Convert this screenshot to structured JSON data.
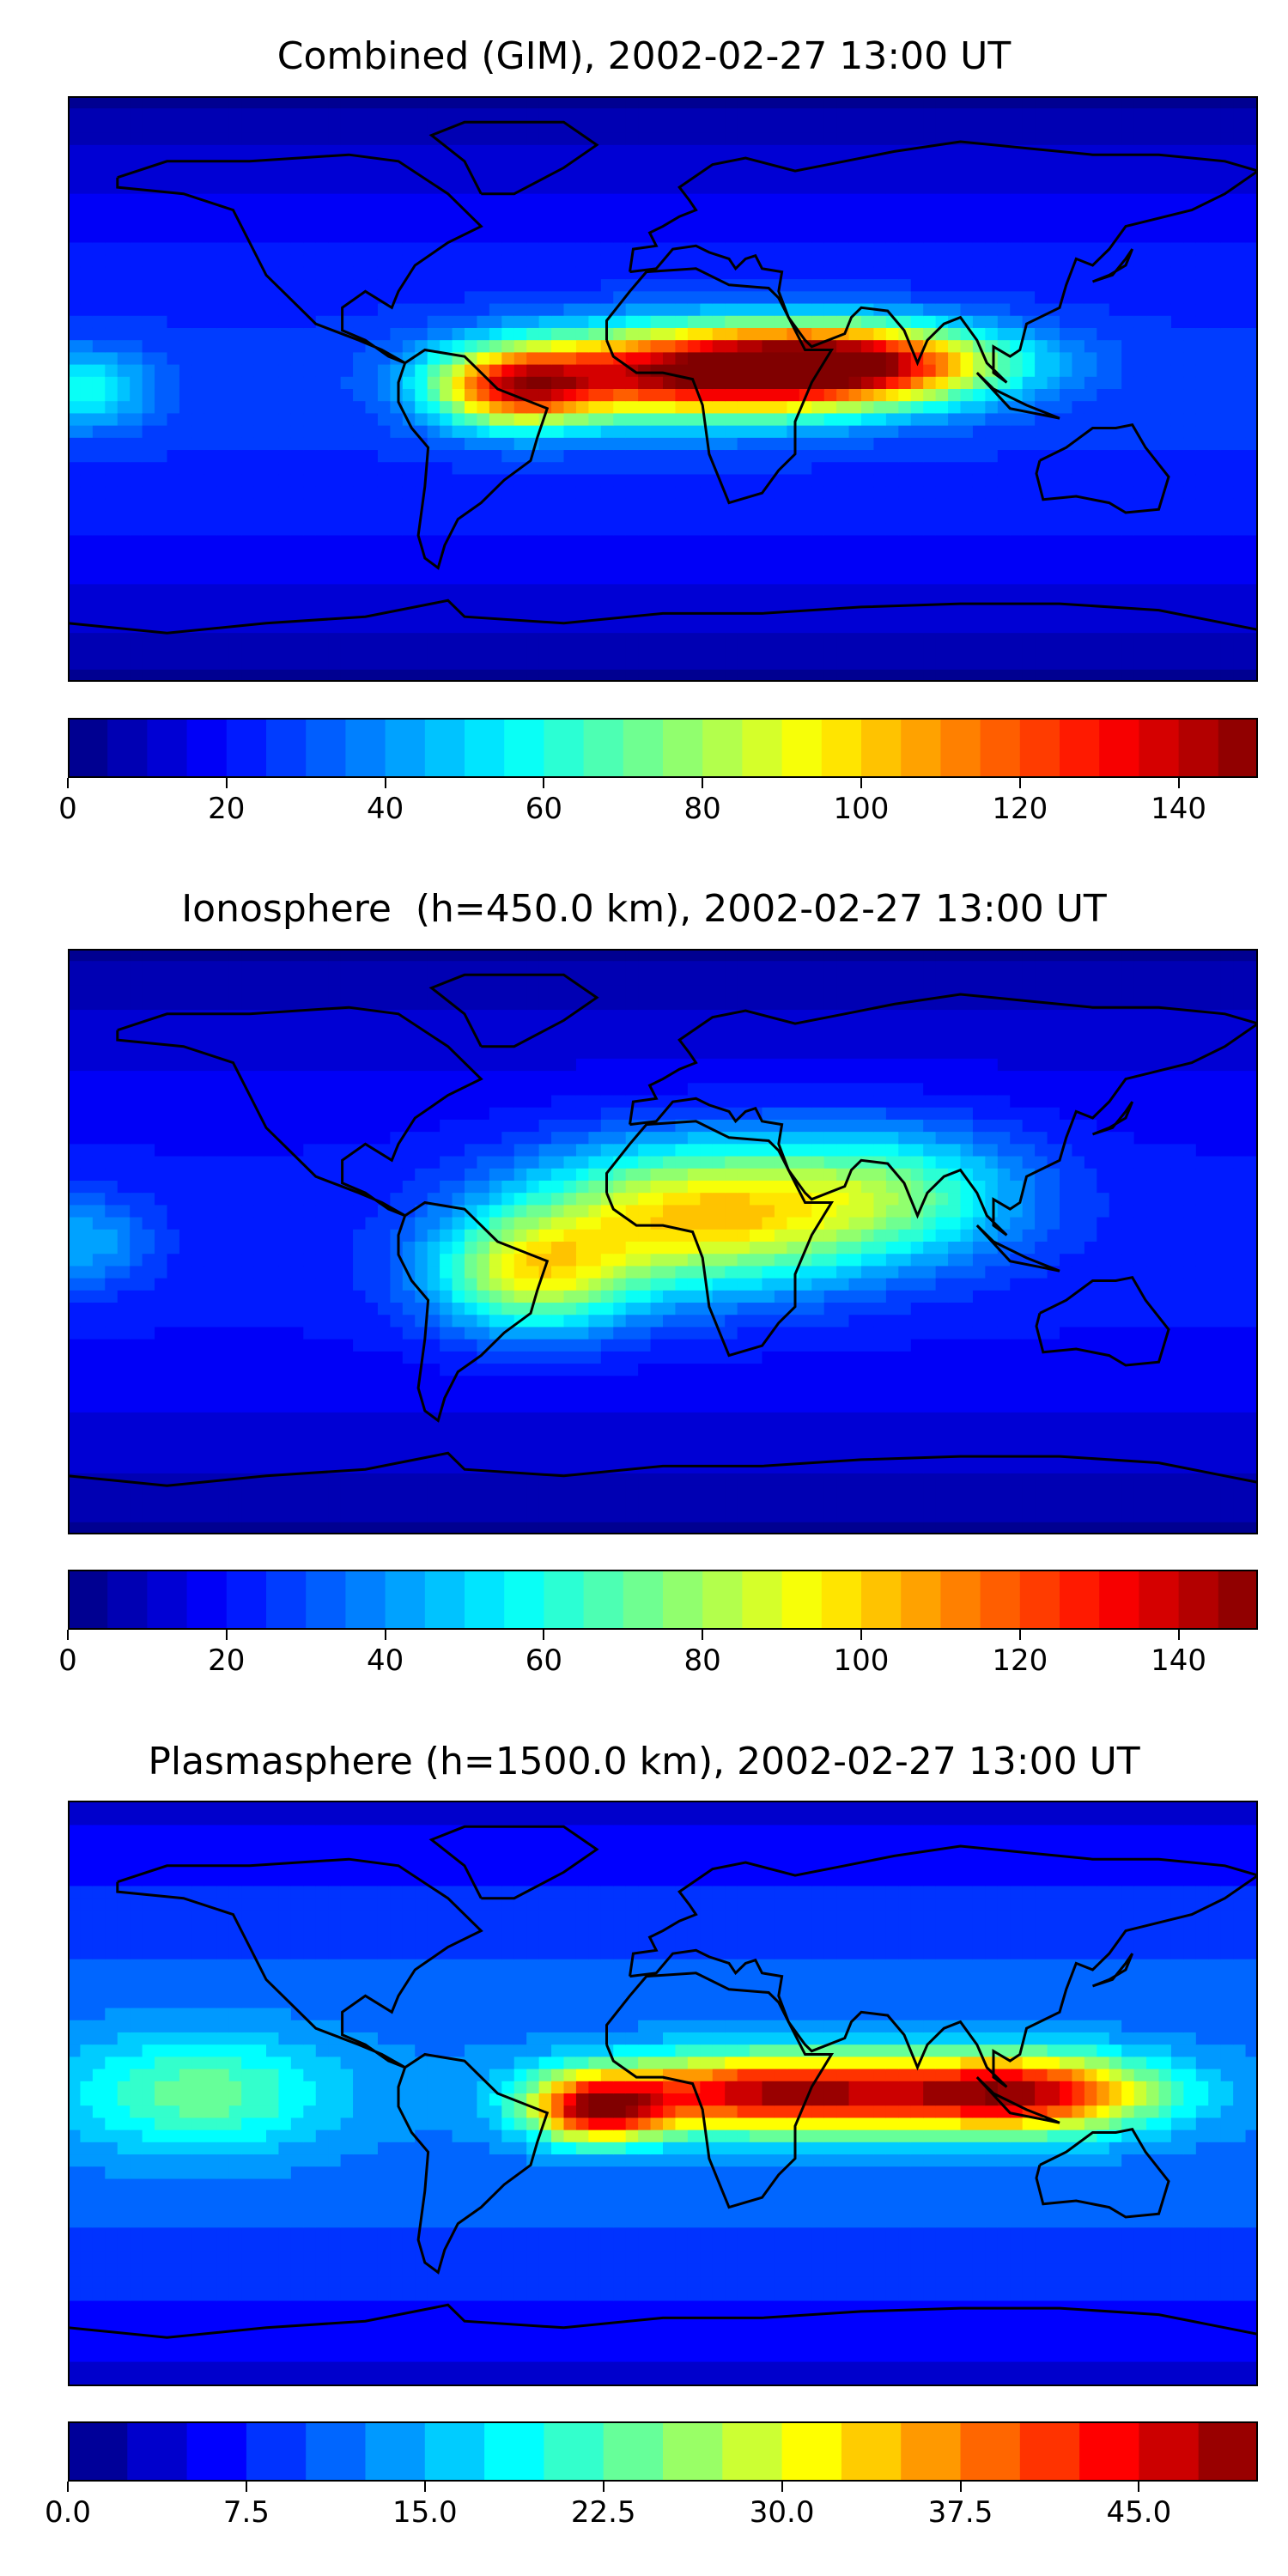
{
  "chart_data": [
    {
      "type": "heatmap",
      "title": "Combined (GIM), 2002-02-27 13:00 UT",
      "colorbar": {
        "min": 0,
        "max": 150,
        "levels": 30,
        "ticks": [
          0,
          20,
          40,
          60,
          80,
          100,
          120,
          140
        ],
        "tick_labels": [
          "0",
          "20",
          "40",
          "60",
          "80",
          "100",
          "120",
          "140"
        ]
      },
      "blobs": [
        {
          "lon": 10,
          "lat": 5,
          "value": 135,
          "radius_lon": 55,
          "radius_lat": 14
        },
        {
          "lon": 60,
          "lat": 8,
          "value": 115,
          "radius_lon": 45,
          "radius_lat": 12
        },
        {
          "lon": -45,
          "lat": 0,
          "value": 105,
          "radius_lon": 25,
          "radius_lat": 12
        },
        {
          "lon": -175,
          "lat": 0,
          "value": 55,
          "radius_lon": 20,
          "radius_lat": 12
        }
      ],
      "background": 22
    },
    {
      "type": "heatmap",
      "title": "Ionosphere  (h=450.0 km), 2002-02-27 13:00 UT",
      "colorbar": {
        "min": 0,
        "max": 150,
        "levels": 30,
        "ticks": [
          0,
          20,
          40,
          60,
          80,
          100,
          120,
          140
        ],
        "tick_labels": [
          "0",
          "20",
          "40",
          "60",
          "80",
          "100",
          "120",
          "140"
        ]
      },
      "blobs": [
        {
          "lon": 10,
          "lat": 8,
          "value": 95,
          "radius_lon": 50,
          "radius_lat": 22
        },
        {
          "lon": -40,
          "lat": -10,
          "value": 80,
          "radius_lon": 30,
          "radius_lat": 18
        },
        {
          "lon": 70,
          "lat": 15,
          "value": 60,
          "radius_lon": 40,
          "radius_lat": 20
        },
        {
          "lon": -175,
          "lat": 0,
          "value": 40,
          "radius_lon": 20,
          "radius_lat": 14
        }
      ],
      "background": 18
    },
    {
      "type": "heatmap",
      "title": "Plasmasphere (h=1500.0 km), 2002-02-27 13:00 UT",
      "colorbar": {
        "min": 0,
        "max": 50,
        "levels": 20,
        "ticks": [
          0,
          7.5,
          15,
          22.5,
          30,
          37.5,
          45
        ],
        "tick_labels": [
          "0.0",
          "7.5",
          "15.0",
          "22.5",
          "30.0",
          "37.5",
          "45.0"
        ]
      },
      "blobs": [
        {
          "lon": 35,
          "lat": 0,
          "value": 44,
          "radius_lon": 55,
          "radius_lat": 12
        },
        {
          "lon": 110,
          "lat": 0,
          "value": 40,
          "radius_lon": 40,
          "radius_lat": 12
        },
        {
          "lon": -20,
          "lat": -5,
          "value": 38,
          "radius_lon": 20,
          "radius_lat": 10
        },
        {
          "lon": -140,
          "lat": 0,
          "value": 20,
          "radius_lon": 40,
          "radius_lat": 18
        }
      ],
      "background": 8
    }
  ]
}
